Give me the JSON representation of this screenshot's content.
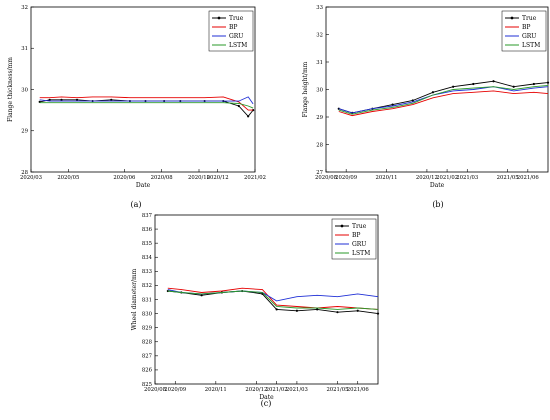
{
  "chart_data": [
    {
      "type": "line",
      "panel_label": "(a)",
      "xlabel": "Date",
      "ylabel": "Flange thickness/mm",
      "ylim": [
        28,
        32
      ],
      "yticks": [
        "28",
        "29",
        "30",
        "31",
        "32"
      ],
      "xlim": [
        "2020-03",
        "2021-03"
      ],
      "xticks": [
        {
          "x": "2020-03",
          "label": "2020/03"
        },
        {
          "x": "2020-05",
          "label": "2020/05"
        },
        {
          "x": "2020-08",
          "label": "2020/06"
        },
        {
          "x": "2020-10",
          "label": "2020/08"
        },
        {
          "x": "2020-12",
          "label": "2020/10"
        },
        {
          "x": "2021-01",
          "label": "2020/12"
        },
        {
          "x": "2021-03",
          "label": "2021/02"
        }
      ],
      "legend": {
        "position": "top-right",
        "entries": [
          "True",
          "BP",
          "GRU",
          "LSTM"
        ]
      },
      "series": [
        {
          "name": "True",
          "color": "#000000",
          "marker": true,
          "x": [
            "2020-03-15",
            "2020-04-01",
            "2020-04-20",
            "2020-05-15",
            "2020-06-10",
            "2020-07-10",
            "2020-08-10",
            "2020-09-05",
            "2020-10-05",
            "2020-11-01",
            "2020-12-10",
            "2021-01-10",
            "2021-02-05",
            "2021-02-20",
            "2021-02-28"
          ],
          "values": [
            29.7,
            29.75,
            29.75,
            29.75,
            29.72,
            29.75,
            29.72,
            29.72,
            29.72,
            29.72,
            29.72,
            29.72,
            29.6,
            29.35,
            29.5
          ]
        },
        {
          "name": "BP",
          "color": "#e60000",
          "marker": false,
          "x": [
            "2020-03-15",
            "2020-04-01",
            "2020-04-20",
            "2020-05-15",
            "2020-06-10",
            "2020-07-10",
            "2020-08-10",
            "2020-09-05",
            "2020-10-05",
            "2020-11-01",
            "2020-12-10",
            "2021-01-10",
            "2021-02-05",
            "2021-02-20",
            "2021-02-28"
          ],
          "values": [
            29.8,
            29.8,
            29.82,
            29.8,
            29.82,
            29.82,
            29.8,
            29.8,
            29.8,
            29.8,
            29.8,
            29.82,
            29.7,
            29.5,
            29.5
          ]
        },
        {
          "name": "GRU",
          "color": "#1f2fd6",
          "marker": false,
          "x": [
            "2020-03-15",
            "2020-04-01",
            "2020-04-20",
            "2020-05-15",
            "2020-06-10",
            "2020-07-10",
            "2020-08-10",
            "2020-09-05",
            "2020-10-05",
            "2020-11-01",
            "2020-12-10",
            "2021-01-10",
            "2021-02-05",
            "2021-02-20",
            "2021-02-28"
          ],
          "values": [
            29.75,
            29.72,
            29.72,
            29.72,
            29.72,
            29.72,
            29.72,
            29.72,
            29.72,
            29.72,
            29.72,
            29.72,
            29.72,
            29.82,
            29.65
          ]
        },
        {
          "name": "LSTM",
          "color": "#2a9a2a",
          "marker": false,
          "x": [
            "2020-03-15",
            "2020-04-01",
            "2020-04-20",
            "2020-05-15",
            "2020-06-10",
            "2020-07-10",
            "2020-08-10",
            "2020-09-05",
            "2020-10-05",
            "2020-11-01",
            "2020-12-10",
            "2021-01-10",
            "2021-02-05",
            "2021-02-20",
            "2021-02-28"
          ],
          "values": [
            29.68,
            29.68,
            29.68,
            29.68,
            29.68,
            29.68,
            29.68,
            29.68,
            29.68,
            29.68,
            29.68,
            29.68,
            29.66,
            29.6,
            29.55
          ]
        }
      ]
    },
    {
      "type": "line",
      "panel_label": "(b)",
      "xlabel": "Date",
      "ylabel": "Flange height/mm",
      "ylim": [
        27,
        33
      ],
      "yticks": [
        "27",
        "28",
        "29",
        "30",
        "31",
        "32",
        "33"
      ],
      "xlim": [
        "2020-08",
        "2021-07"
      ],
      "xticks": [
        {
          "x": "2020-08",
          "label": "2020/08"
        },
        {
          "x": "2020-09",
          "label": "2020/09"
        },
        {
          "x": "2020-11",
          "label": "2020/11"
        },
        {
          "x": "2021-01",
          "label": "2020/12"
        },
        {
          "x": "2021-02",
          "label": "2021/02"
        },
        {
          "x": "2021-03",
          "label": "2021/03"
        },
        {
          "x": "2021-05",
          "label": "2021/05"
        },
        {
          "x": "2021-06",
          "label": "2021/06"
        }
      ],
      "legend": {
        "position": "top-right",
        "entries": [
          "True",
          "BP",
          "GRU",
          "LSTM"
        ]
      },
      "series": [
        {
          "name": "True",
          "color": "#000000",
          "marker": true,
          "x": [
            "2020-08-20",
            "2020-09-10",
            "2020-10-10",
            "2020-11-10",
            "2020-12-10",
            "2021-01-10",
            "2021-02-10",
            "2021-03-10",
            "2021-04-10",
            "2021-05-10",
            "2021-06-10",
            "2021-07-01"
          ],
          "values": [
            29.3,
            29.15,
            29.3,
            29.45,
            29.6,
            29.9,
            30.1,
            30.2,
            30.3,
            30.1,
            30.2,
            30.25
          ]
        },
        {
          "name": "BP",
          "color": "#e60000",
          "marker": false,
          "x": [
            "2020-08-20",
            "2020-09-10",
            "2020-10-10",
            "2020-11-10",
            "2020-12-10",
            "2021-01-10",
            "2021-02-10",
            "2021-03-10",
            "2021-04-10",
            "2021-05-10",
            "2021-06-10",
            "2021-07-01"
          ],
          "values": [
            29.2,
            29.05,
            29.2,
            29.3,
            29.45,
            29.7,
            29.85,
            29.9,
            29.95,
            29.85,
            29.9,
            29.85
          ]
        },
        {
          "name": "GRU",
          "color": "#1f2fd6",
          "marker": false,
          "x": [
            "2020-08-20",
            "2020-09-10",
            "2020-10-10",
            "2020-11-10",
            "2020-12-10",
            "2021-01-10",
            "2021-02-10",
            "2021-03-10",
            "2021-04-10",
            "2021-05-10",
            "2021-06-10",
            "2021-07-01"
          ],
          "values": [
            29.3,
            29.15,
            29.3,
            29.4,
            29.55,
            29.8,
            29.95,
            30.0,
            30.1,
            29.95,
            30.05,
            30.1
          ]
        },
        {
          "name": "LSTM",
          "color": "#2a9a2a",
          "marker": false,
          "x": [
            "2020-08-20",
            "2020-09-10",
            "2020-10-10",
            "2020-11-10",
            "2020-12-10",
            "2021-01-10",
            "2021-02-10",
            "2021-03-10",
            "2021-04-10",
            "2021-05-10",
            "2021-06-10",
            "2021-07-01"
          ],
          "values": [
            29.25,
            29.1,
            29.25,
            29.35,
            29.5,
            29.8,
            30.0,
            30.05,
            30.1,
            30.0,
            30.1,
            30.15
          ]
        }
      ]
    },
    {
      "type": "line",
      "panel_label": "(c)",
      "xlabel": "Date",
      "ylabel": "Wheel diameter/mm",
      "ylim": [
        825,
        837
      ],
      "yticks": [
        "825",
        "826",
        "827",
        "828",
        "829",
        "830",
        "831",
        "832",
        "833",
        "834",
        "835",
        "836",
        "837"
      ],
      "xlim": [
        "2020-08",
        "2021-07"
      ],
      "xticks": [
        {
          "x": "2020-08",
          "label": "2020/08"
        },
        {
          "x": "2020-09",
          "label": "2020/09"
        },
        {
          "x": "2020-11",
          "label": "2020/11"
        },
        {
          "x": "2021-01",
          "label": "2020/12"
        },
        {
          "x": "2021-02",
          "label": "2021/02"
        },
        {
          "x": "2021-03",
          "label": "2021/03"
        },
        {
          "x": "2021-05",
          "label": "2021/05"
        },
        {
          "x": "2021-06",
          "label": "2021/06"
        }
      ],
      "legend": {
        "position": "top-right",
        "entries": [
          "True",
          "BP",
          "GRU",
          "LSTM"
        ]
      },
      "series": [
        {
          "name": "True",
          "color": "#000000",
          "marker": true,
          "x": [
            "2020-08-20",
            "2020-09-10",
            "2020-10-10",
            "2020-11-10",
            "2020-12-10",
            "2021-01-10",
            "2021-02-01",
            "2021-03-01",
            "2021-04-01",
            "2021-05-01",
            "2021-06-01",
            "2021-07-01"
          ],
          "values": [
            831.6,
            831.5,
            831.3,
            831.5,
            831.6,
            831.4,
            830.3,
            830.2,
            830.3,
            830.1,
            830.2,
            830.0
          ]
        },
        {
          "name": "BP",
          "color": "#e60000",
          "marker": false,
          "x": [
            "2020-08-20",
            "2020-09-10",
            "2020-10-10",
            "2020-11-10",
            "2020-12-10",
            "2021-01-10",
            "2021-02-01",
            "2021-03-01",
            "2021-04-01",
            "2021-05-01",
            "2021-06-01",
            "2021-07-01"
          ],
          "values": [
            831.8,
            831.7,
            831.5,
            831.6,
            831.8,
            831.7,
            830.6,
            830.5,
            830.4,
            830.5,
            830.4,
            830.3
          ]
        },
        {
          "name": "GRU",
          "color": "#1f2fd6",
          "marker": false,
          "x": [
            "2020-08-20",
            "2020-09-10",
            "2020-10-10",
            "2020-11-10",
            "2020-12-10",
            "2021-01-10",
            "2021-02-01",
            "2021-03-01",
            "2021-04-01",
            "2021-05-01",
            "2021-06-01",
            "2021-07-01"
          ],
          "values": [
            831.7,
            831.5,
            831.4,
            831.5,
            831.6,
            831.5,
            830.9,
            831.2,
            831.3,
            831.2,
            831.4,
            831.2
          ]
        },
        {
          "name": "LSTM",
          "color": "#2a9a2a",
          "marker": false,
          "x": [
            "2020-08-20",
            "2020-09-10",
            "2020-10-10",
            "2020-11-10",
            "2020-12-10",
            "2021-01-10",
            "2021-02-01",
            "2021-03-01",
            "2021-04-01",
            "2021-05-01",
            "2021-06-01",
            "2021-07-01"
          ],
          "values": [
            831.6,
            831.5,
            831.4,
            831.5,
            831.6,
            831.5,
            830.5,
            830.4,
            830.4,
            830.3,
            830.4,
            830.3
          ]
        }
      ]
    }
  ]
}
